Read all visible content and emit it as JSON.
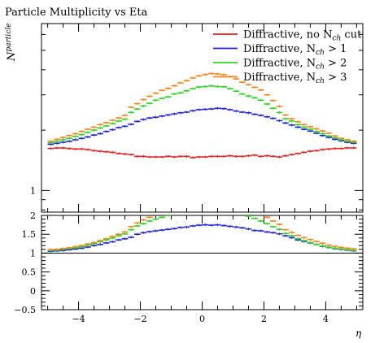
{
  "chart_data": {
    "type": "scatter",
    "title": "Particle Multiplicity vs Eta",
    "ylabel_main": "N",
    "ylabel_main_sup": "particle",
    "xlabel": "η",
    "legend_placement": "top-right",
    "series": [
      {
        "name": "Diffractive, no N",
        "name_sub": "ch",
        "name_tail": " cut",
        "color": "#e8201e",
        "ratio_visible": false,
        "x": [
          -4.9,
          -4.7,
          -4.5,
          -4.3,
          -4.1,
          -3.9,
          -3.7,
          -3.5,
          -3.3,
          -3.1,
          -2.9,
          -2.7,
          -2.5,
          -2.3,
          -2.1,
          -1.9,
          -1.7,
          -1.5,
          -1.3,
          -1.1,
          -0.9,
          -0.7,
          -0.5,
          -0.3,
          -0.1,
          0.1,
          0.3,
          0.5,
          0.7,
          0.9,
          1.1,
          1.3,
          1.5,
          1.7,
          1.9,
          2.1,
          2.3,
          2.5,
          2.7,
          2.9,
          3.1,
          3.3,
          3.5,
          3.7,
          3.9,
          4.1,
          4.3,
          4.5,
          4.7,
          4.9
        ],
        "y": [
          1.62,
          1.63,
          1.63,
          1.62,
          1.61,
          1.61,
          1.6,
          1.58,
          1.57,
          1.56,
          1.55,
          1.53,
          1.52,
          1.51,
          1.48,
          1.48,
          1.47,
          1.47,
          1.47,
          1.48,
          1.47,
          1.48,
          1.48,
          1.46,
          1.47,
          1.47,
          1.48,
          1.48,
          1.48,
          1.49,
          1.48,
          1.48,
          1.49,
          1.5,
          1.48,
          1.49,
          1.48,
          1.47,
          1.49,
          1.51,
          1.53,
          1.55,
          1.57,
          1.58,
          1.6,
          1.61,
          1.62,
          1.62,
          1.63,
          1.63
        ],
        "ratio": []
      },
      {
        "name": "Diffractive, N",
        "name_sub": "ch",
        "name_tail": " > 1",
        "color": "#1f23e0",
        "ratio_visible": true,
        "x": [
          -4.9,
          -4.7,
          -4.5,
          -4.3,
          -4.1,
          -3.9,
          -3.7,
          -3.5,
          -3.3,
          -3.1,
          -2.9,
          -2.7,
          -2.5,
          -2.3,
          -2.1,
          -1.9,
          -1.7,
          -1.5,
          -1.3,
          -1.1,
          -0.9,
          -0.7,
          -0.5,
          -0.3,
          -0.1,
          0.1,
          0.3,
          0.5,
          0.7,
          0.9,
          1.1,
          1.3,
          1.5,
          1.7,
          1.9,
          2.1,
          2.3,
          2.5,
          2.7,
          2.9,
          3.1,
          3.3,
          3.5,
          3.7,
          3.9,
          4.1,
          4.3,
          4.5,
          4.7,
          4.9
        ],
        "y": [
          1.7,
          1.72,
          1.74,
          1.76,
          1.79,
          1.82,
          1.85,
          1.89,
          1.92,
          1.97,
          2.01,
          2.06,
          2.09,
          2.14,
          2.21,
          2.26,
          2.3,
          2.32,
          2.35,
          2.38,
          2.41,
          2.44,
          2.46,
          2.5,
          2.53,
          2.54,
          2.55,
          2.57,
          2.56,
          2.53,
          2.49,
          2.46,
          2.44,
          2.4,
          2.37,
          2.33,
          2.29,
          2.23,
          2.17,
          2.12,
          2.07,
          2.02,
          1.98,
          1.93,
          1.88,
          1.84,
          1.8,
          1.77,
          1.74,
          1.72
        ],
        "ratio": [
          1.05,
          1.06,
          1.07,
          1.09,
          1.11,
          1.13,
          1.16,
          1.2,
          1.23,
          1.27,
          1.3,
          1.35,
          1.38,
          1.42,
          1.5,
          1.54,
          1.57,
          1.59,
          1.61,
          1.63,
          1.65,
          1.68,
          1.69,
          1.72,
          1.74,
          1.75,
          1.74,
          1.75,
          1.73,
          1.71,
          1.69,
          1.67,
          1.64,
          1.6,
          1.59,
          1.56,
          1.54,
          1.51,
          1.46,
          1.41,
          1.35,
          1.31,
          1.27,
          1.23,
          1.18,
          1.15,
          1.12,
          1.1,
          1.08,
          1.06
        ]
      },
      {
        "name": "Diffractive, N",
        "name_sub": "ch",
        "name_tail": " > 2",
        "color": "#29d81d",
        "ratio_visible": true,
        "x": [
          -4.9,
          -4.7,
          -4.5,
          -4.3,
          -4.1,
          -3.9,
          -3.7,
          -3.5,
          -3.3,
          -3.1,
          -2.9,
          -2.7,
          -2.5,
          -2.3,
          -2.1,
          -1.9,
          -1.7,
          -1.5,
          -1.3,
          -1.1,
          -0.9,
          -0.7,
          -0.5,
          -0.3,
          -0.1,
          0.1,
          0.3,
          0.5,
          0.7,
          0.9,
          1.1,
          1.3,
          1.5,
          1.7,
          1.9,
          2.1,
          2.3,
          2.5,
          2.7,
          2.9,
          3.1,
          3.3,
          3.5,
          3.7,
          3.9,
          4.1,
          4.3,
          4.5,
          4.7,
          4.9
        ],
        "y": [
          1.73,
          1.76,
          1.79,
          1.82,
          1.86,
          1.9,
          1.95,
          2.0,
          2.05,
          2.1,
          2.16,
          2.22,
          2.27,
          2.45,
          2.55,
          2.64,
          2.72,
          2.82,
          2.88,
          2.93,
          3.03,
          3.07,
          3.14,
          3.22,
          3.28,
          3.3,
          3.32,
          3.3,
          3.29,
          3.22,
          3.13,
          3.03,
          2.96,
          2.9,
          2.82,
          2.7,
          2.57,
          2.45,
          2.28,
          2.22,
          2.13,
          2.07,
          2.02,
          1.97,
          1.92,
          1.87,
          1.83,
          1.79,
          1.76,
          1.74
        ],
        "ratio": [
          1.07,
          1.08,
          1.1,
          1.12,
          1.14,
          1.17,
          1.21,
          1.25,
          1.3,
          1.35,
          1.4,
          1.46,
          1.51,
          1.62,
          1.72,
          1.78,
          1.85,
          1.9,
          1.95,
          2.0,
          2.05,
          2.1,
          2.14,
          2.2,
          2.24,
          2.25,
          2.26,
          2.24,
          2.22,
          2.18,
          2.12,
          2.04,
          1.98,
          1.92,
          1.85,
          1.78,
          1.7,
          1.63,
          1.52,
          1.46,
          1.38,
          1.33,
          1.28,
          1.23,
          1.19,
          1.15,
          1.13,
          1.11,
          1.09,
          1.07
        ]
      },
      {
        "name": "Diffractive, N",
        "name_sub": "ch",
        "name_tail": " > 3",
        "color": "#f5861e",
        "ratio_visible": true,
        "x": [
          -4.9,
          -4.7,
          -4.5,
          -4.3,
          -4.1,
          -3.9,
          -3.7,
          -3.5,
          -3.3,
          -3.1,
          -2.9,
          -2.7,
          -2.5,
          -2.3,
          -2.1,
          -1.9,
          -1.7,
          -1.5,
          -1.3,
          -1.1,
          -0.9,
          -0.7,
          -0.5,
          -0.3,
          -0.1,
          0.1,
          0.3,
          0.5,
          0.7,
          0.9,
          1.1,
          1.3,
          1.5,
          1.7,
          1.9,
          2.1,
          2.3,
          2.5,
          2.7,
          2.9,
          3.1,
          3.3,
          3.5,
          3.7,
          3.9,
          4.1,
          4.3,
          4.5,
          4.7,
          4.9
        ],
        "y": [
          1.76,
          1.8,
          1.84,
          1.88,
          1.92,
          1.97,
          2.02,
          2.07,
          2.13,
          2.18,
          2.24,
          2.3,
          2.37,
          2.6,
          2.71,
          2.84,
          2.95,
          3.06,
          3.16,
          3.23,
          3.33,
          3.44,
          3.53,
          3.64,
          3.73,
          3.79,
          3.83,
          3.81,
          3.78,
          3.7,
          3.6,
          3.47,
          3.37,
          3.27,
          3.17,
          3.0,
          2.81,
          2.63,
          2.38,
          2.28,
          2.2,
          2.13,
          2.08,
          2.03,
          1.98,
          1.93,
          1.87,
          1.82,
          1.79,
          1.76
        ],
        "ratio": [
          1.09,
          1.1,
          1.12,
          1.14,
          1.17,
          1.2,
          1.24,
          1.28,
          1.33,
          1.38,
          1.44,
          1.5,
          1.56,
          1.7,
          1.8,
          1.88,
          1.95,
          2.02,
          2.1,
          2.16,
          2.22,
          2.28,
          2.34,
          2.42,
          2.48,
          2.52,
          2.55,
          2.53,
          2.5,
          2.44,
          2.38,
          2.3,
          2.22,
          2.14,
          2.06,
          1.95,
          1.85,
          1.76,
          1.62,
          1.55,
          1.47,
          1.41,
          1.36,
          1.31,
          1.26,
          1.21,
          1.18,
          1.15,
          1.13,
          1.11
        ]
      }
    ],
    "main_xlim": [
      -5.2,
      5.2
    ],
    "main_ylim": [
      0.78,
      6.8
    ],
    "main_yscale": "log",
    "main_yticks_labeled": [
      1
    ],
    "ratio_ylim": [
      -0.5,
      2.0
    ],
    "ratio_yticks": [
      -0.5,
      0,
      0.5,
      1,
      1.5,
      2
    ],
    "ratio_ytick_labels": [
      "−0.5",
      "0",
      "0.5",
      "1",
      "1.5",
      "2"
    ],
    "xticks": [
      -4,
      -2,
      0,
      2,
      4
    ],
    "xtick_labels": [
      "−4",
      "−2",
      "0",
      "2",
      "4"
    ],
    "xerr_half": 0.1
  }
}
